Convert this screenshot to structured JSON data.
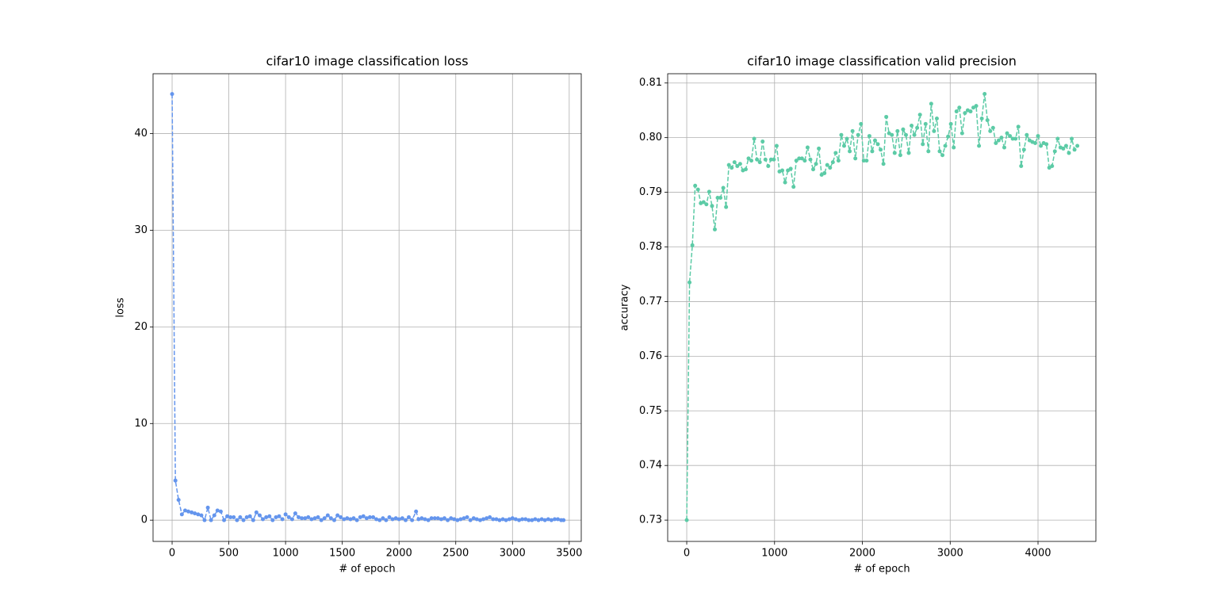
{
  "chart_data": [
    {
      "type": "line",
      "title": "cifar10 image classification loss",
      "xlabel": "# of epoch",
      "ylabel": "loss",
      "color": "#6495ed",
      "grid": true,
      "linestyle": "dashed",
      "marker": "circle",
      "xlim": [
        -168,
        3606
      ],
      "ylim": [
        -2.2,
        46.2
      ],
      "xticks": [
        0,
        500,
        1000,
        1500,
        2000,
        2500,
        3000,
        3500
      ],
      "yticks": [
        0,
        10,
        20,
        30,
        40
      ],
      "x": [
        0,
        29,
        57,
        86,
        115,
        143,
        172,
        200,
        229,
        258,
        286,
        315,
        343,
        372,
        400,
        429,
        458,
        486,
        515,
        543,
        572,
        600,
        629,
        658,
        686,
        715,
        743,
        772,
        800,
        829,
        858,
        886,
        915,
        943,
        972,
        1000,
        1029,
        1058,
        1086,
        1115,
        1143,
        1172,
        1200,
        1229,
        1258,
        1286,
        1315,
        1343,
        1372,
        1400,
        1429,
        1458,
        1486,
        1515,
        1543,
        1572,
        1600,
        1629,
        1658,
        1686,
        1715,
        1743,
        1772,
        1800,
        1829,
        1858,
        1886,
        1915,
        1943,
        1972,
        2000,
        2029,
        2058,
        2086,
        2115,
        2150,
        2172,
        2200,
        2229,
        2258,
        2286,
        2315,
        2343,
        2372,
        2400,
        2429,
        2458,
        2486,
        2515,
        2543,
        2572,
        2600,
        2629,
        2658,
        2686,
        2715,
        2743,
        2772,
        2800,
        2829,
        2858,
        2886,
        2915,
        2943,
        2972,
        3000,
        3029,
        3058,
        3086,
        3115,
        3143,
        3172,
        3200,
        3229,
        3258,
        3286,
        3315,
        3343,
        3372,
        3400,
        3429,
        3450
      ],
      "values": [
        44.1,
        4.1,
        2.1,
        0.6,
        1.0,
        0.9,
        0.8,
        0.7,
        0.6,
        0.5,
        0.0,
        1.3,
        0.0,
        0.5,
        1.0,
        0.9,
        0.0,
        0.4,
        0.3,
        0.3,
        0.0,
        0.3,
        0.0,
        0.3,
        0.4,
        0.0,
        0.8,
        0.5,
        0.1,
        0.3,
        0.4,
        0.0,
        0.3,
        0.4,
        0.1,
        0.6,
        0.3,
        0.1,
        0.7,
        0.3,
        0.2,
        0.2,
        0.3,
        0.1,
        0.2,
        0.3,
        0.0,
        0.2,
        0.5,
        0.2,
        0.0,
        0.5,
        0.3,
        0.1,
        0.2,
        0.1,
        0.2,
        0.0,
        0.3,
        0.4,
        0.2,
        0.3,
        0.3,
        0.1,
        0.0,
        0.2,
        0.0,
        0.3,
        0.1,
        0.2,
        0.1,
        0.2,
        0.0,
        0.3,
        0.0,
        0.9,
        0.1,
        0.2,
        0.1,
        0.0,
        0.2,
        0.2,
        0.2,
        0.1,
        0.2,
        0.0,
        0.2,
        0.1,
        0.0,
        0.1,
        0.2,
        0.3,
        0.0,
        0.2,
        0.1,
        0.0,
        0.1,
        0.2,
        0.3,
        0.1,
        0.1,
        0.0,
        0.1,
        0.0,
        0.1,
        0.2,
        0.1,
        0.0,
        0.1,
        0.1,
        0.0,
        0.0,
        0.1,
        0.0,
        0.1,
        0.0,
        0.1,
        0.0,
        0.1,
        0.1,
        0.0,
        0.0
      ]
    },
    {
      "type": "line",
      "title": "cifar10 image classification valid precision",
      "xlabel": "# of epoch",
      "ylabel": "accuracy",
      "color": "#5ccba6",
      "grid": true,
      "linestyle": "dashed",
      "marker": "circle",
      "xlim": [
        -217,
        4659
      ],
      "ylim": [
        0.7261,
        0.8117
      ],
      "xticks": [
        0,
        1000,
        2000,
        3000,
        4000
      ],
      "yticks": [
        0.73,
        0.74,
        0.75,
        0.76,
        0.77,
        0.78,
        0.79,
        {
          "value": 0.8,
          "label": "0.80"
        },
        0.81
      ],
      "x": [
        0,
        32,
        64,
        96,
        128,
        160,
        192,
        224,
        256,
        288,
        320,
        352,
        384,
        416,
        448,
        480,
        512,
        544,
        576,
        608,
        640,
        672,
        704,
        736,
        768,
        800,
        832,
        864,
        896,
        928,
        960,
        992,
        1024,
        1056,
        1088,
        1120,
        1152,
        1184,
        1216,
        1248,
        1280,
        1312,
        1344,
        1376,
        1408,
        1440,
        1472,
        1504,
        1536,
        1568,
        1600,
        1632,
        1664,
        1696,
        1728,
        1760,
        1792,
        1824,
        1856,
        1888,
        1920,
        1952,
        1984,
        2016,
        2048,
        2080,
        2112,
        2144,
        2176,
        2208,
        2240,
        2272,
        2304,
        2336,
        2368,
        2400,
        2432,
        2464,
        2496,
        2528,
        2560,
        2592,
        2624,
        2656,
        2688,
        2720,
        2752,
        2784,
        2816,
        2848,
        2880,
        2912,
        2944,
        2976,
        3008,
        3040,
        3072,
        3104,
        3136,
        3168,
        3200,
        3232,
        3264,
        3296,
        3328,
        3360,
        3392,
        3424,
        3456,
        3488,
        3520,
        3552,
        3584,
        3616,
        3648,
        3680,
        3712,
        3744,
        3776,
        3808,
        3840,
        3872,
        3904,
        3936,
        3968,
        4000,
        4032,
        4064,
        4096,
        4128,
        4160,
        4192,
        4224,
        4256,
        4288,
        4320,
        4352,
        4384,
        4416,
        4448
      ],
      "values": [
        0.73,
        0.7735,
        0.7803,
        0.7912,
        0.7905,
        0.788,
        0.7882,
        0.7878,
        0.7901,
        0.7875,
        0.7832,
        0.789,
        0.789,
        0.7908,
        0.7873,
        0.795,
        0.7945,
        0.7955,
        0.7948,
        0.7952,
        0.794,
        0.7942,
        0.7962,
        0.7958,
        0.7998,
        0.796,
        0.7955,
        0.7993,
        0.796,
        0.7948,
        0.796,
        0.796,
        0.7985,
        0.7938,
        0.794,
        0.7918,
        0.794,
        0.7943,
        0.791,
        0.7958,
        0.7962,
        0.7962,
        0.7958,
        0.7982,
        0.796,
        0.7942,
        0.7952,
        0.798,
        0.7932,
        0.7935,
        0.795,
        0.7945,
        0.7955,
        0.7972,
        0.7958,
        0.8005,
        0.7985,
        0.7998,
        0.7975,
        0.8012,
        0.7962,
        0.8005,
        0.8025,
        0.7958,
        0.7958,
        0.8003,
        0.7975,
        0.7995,
        0.7988,
        0.7978,
        0.7952,
        0.8038,
        0.8008,
        0.8005,
        0.7972,
        0.8012,
        0.7968,
        0.8015,
        0.8005,
        0.7972,
        0.8022,
        0.8005,
        0.8018,
        0.8042,
        0.7988,
        0.8025,
        0.7975,
        0.8062,
        0.8012,
        0.8035,
        0.7975,
        0.7968,
        0.7985,
        0.8002,
        0.8025,
        0.7982,
        0.8048,
        0.8055,
        0.8008,
        0.8045,
        0.805,
        0.8048,
        0.8055,
        0.8058,
        0.7985,
        0.8035,
        0.808,
        0.8032,
        0.8012,
        0.8018,
        0.799,
        0.7995,
        0.8,
        0.7982,
        0.8008,
        0.8003,
        0.7998,
        0.7998,
        0.802,
        0.7948,
        0.7978,
        0.8005,
        0.7995,
        0.7992,
        0.799,
        0.8003,
        0.7985,
        0.799,
        0.7988,
        0.7945,
        0.7948,
        0.7975,
        0.7998,
        0.7982,
        0.798,
        0.7985,
        0.7972,
        0.7998,
        0.7978,
        0.7985
      ]
    }
  ]
}
